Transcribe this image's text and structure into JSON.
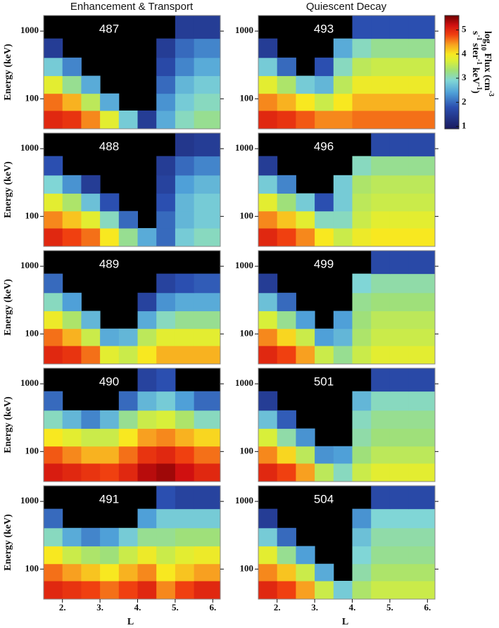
{
  "figure": {
    "column_titles": [
      "Enhancement & Transport",
      "Quiescent Decay"
    ],
    "colorbar": {
      "clim": [
        0.9,
        5.6
      ],
      "ticks": [
        1,
        2,
        3,
        4,
        5
      ],
      "colormap": [
        {
          "value": 0.9,
          "color": "#1a1a5e"
        },
        {
          "value": 1.8,
          "color": "#2b4fb0"
        },
        {
          "value": 2.4,
          "color": "#4fa0d8"
        },
        {
          "value": 2.9,
          "color": "#80d6d6"
        },
        {
          "value": 3.3,
          "color": "#9fe07a"
        },
        {
          "value": 3.7,
          "color": "#d8ef3a"
        },
        {
          "value": 4.0,
          "color": "#f8e820"
        },
        {
          "value": 4.4,
          "color": "#f8a020"
        },
        {
          "value": 4.8,
          "color": "#f04010"
        },
        {
          "value": 5.2,
          "color": "#d01010"
        },
        {
          "value": 5.6,
          "color": "#6e0000"
        }
      ],
      "label": [
        [
          {
            "text": "log"
          },
          {
            "text": "10",
            "sub": true
          },
          {
            "text": " Flux (cm"
          },
          {
            "text": "-3",
            "sup": true
          }
        ],
        [
          {
            "text": "s"
          },
          {
            "text": "-1",
            "sup": true
          },
          {
            "text": " ster"
          },
          {
            "text": "-1",
            "sup": true
          },
          {
            "text": " keV"
          },
          {
            "text": "-1",
            "sup": true
          },
          {
            "text": ")"
          }
        ]
      ]
    }
  },
  "chart_data": [
    {
      "type": "heatmap",
      "title": "487",
      "ylabel": "Energy (keV)",
      "ylog": true,
      "xlim": [
        1.5,
        6.2
      ],
      "ylim": [
        36,
        1700
      ],
      "yticks": [
        100,
        1000
      ],
      "x": [
        1.75,
        2.25,
        2.75,
        3.25,
        3.75,
        4.25,
        4.75,
        5.25,
        5.75
      ],
      "y": [
        50,
        90,
        160,
        300,
        550,
        1100
      ],
      "z": [
        [
          5.0,
          4.9,
          4.5,
          3.8,
          2.8,
          1.5,
          2.5,
          3.0,
          3.2
        ],
        [
          4.6,
          4.3,
          3.5,
          2.5,
          null,
          null,
          2.3,
          2.8,
          3.0
        ],
        [
          3.8,
          3.2,
          2.5,
          null,
          null,
          null,
          2.0,
          2.6,
          2.8
        ],
        [
          2.8,
          2.2,
          null,
          null,
          null,
          null,
          1.7,
          2.2,
          2.5
        ],
        [
          1.5,
          null,
          null,
          null,
          null,
          null,
          1.5,
          2.0,
          2.2
        ],
        [
          null,
          null,
          null,
          null,
          null,
          null,
          null,
          1.5,
          1.5
        ]
      ]
    },
    {
      "type": "heatmap",
      "title": "488",
      "ylabel": "Energy (keV)",
      "ylog": true,
      "xlim": [
        1.5,
        6.2
      ],
      "ylim": [
        36,
        1700
      ],
      "yticks": [
        100,
        1000
      ],
      "x": [
        1.75,
        2.25,
        2.75,
        3.25,
        3.75,
        4.25,
        4.75,
        5.25,
        5.75
      ],
      "y": [
        50,
        90,
        160,
        300,
        550,
        1100
      ],
      "z": [
        [
          5.0,
          4.8,
          4.6,
          4.0,
          3.2,
          2.5,
          2.0,
          2.8,
          3.0
        ],
        [
          4.5,
          4.2,
          3.8,
          3.0,
          2.0,
          null,
          2.0,
          2.6,
          2.8
        ],
        [
          3.8,
          3.4,
          2.7,
          1.8,
          null,
          null,
          1.8,
          2.6,
          2.8
        ],
        [
          2.9,
          2.3,
          1.5,
          null,
          null,
          null,
          1.6,
          2.4,
          2.6
        ],
        [
          1.8,
          null,
          null,
          null,
          null,
          null,
          1.5,
          2.0,
          2.2
        ],
        [
          null,
          null,
          null,
          null,
          null,
          null,
          null,
          1.4,
          1.5
        ]
      ]
    },
    {
      "type": "heatmap",
      "title": "489",
      "ylabel": "Energy (keV)",
      "ylog": true,
      "xlim": [
        1.5,
        6.2
      ],
      "ylim": [
        36,
        1700
      ],
      "yticks": [
        100,
        1000
      ],
      "x": [
        1.75,
        2.25,
        2.75,
        3.25,
        3.75,
        4.25,
        4.75,
        5.25,
        5.75
      ],
      "y": [
        50,
        90,
        160,
        300,
        550,
        1100
      ],
      "z": [
        [
          5.0,
          4.9,
          4.6,
          3.8,
          3.6,
          4.0,
          4.3,
          4.3,
          4.3
        ],
        [
          4.6,
          4.3,
          3.6,
          2.5,
          2.6,
          3.5,
          3.8,
          3.8,
          3.8
        ],
        [
          3.9,
          3.4,
          2.6,
          null,
          null,
          2.5,
          3.0,
          3.2,
          3.2
        ],
        [
          3.0,
          2.4,
          null,
          null,
          null,
          1.6,
          2.3,
          2.5,
          2.5
        ],
        [
          2.0,
          null,
          null,
          null,
          null,
          null,
          1.6,
          1.8,
          1.9
        ],
        [
          null,
          null,
          null,
          null,
          null,
          null,
          null,
          null,
          null
        ]
      ]
    },
    {
      "type": "heatmap",
      "title": "490",
      "ylabel": "Energy (keV)",
      "ylog": true,
      "xlim": [
        1.5,
        6.2
      ],
      "ylim": [
        36,
        1700
      ],
      "yticks": [
        100,
        1000
      ],
      "x": [
        1.75,
        2.25,
        2.75,
        3.25,
        3.75,
        4.25,
        4.75,
        5.25,
        5.75
      ],
      "y": [
        50,
        90,
        160,
        300,
        550,
        1100
      ],
      "z": [
        [
          5.1,
          5.0,
          4.9,
          4.8,
          5.0,
          5.3,
          5.4,
          5.2,
          5.0
        ],
        [
          4.7,
          4.5,
          4.3,
          4.3,
          4.6,
          4.9,
          5.0,
          4.8,
          4.6
        ],
        [
          4.0,
          3.8,
          3.6,
          3.6,
          4.0,
          4.4,
          4.5,
          4.3,
          4.1
        ],
        [
          3.0,
          2.6,
          2.2,
          2.6,
          3.2,
          3.6,
          3.7,
          3.4,
          3.0
        ],
        [
          2.0,
          null,
          null,
          null,
          2.0,
          2.6,
          2.8,
          2.4,
          2.0
        ],
        [
          null,
          null,
          null,
          null,
          null,
          1.6,
          1.8,
          null,
          null
        ]
      ]
    },
    {
      "type": "heatmap",
      "title": "491",
      "ylabel": "Energy (keV)",
      "xlabel": "L",
      "ylog": true,
      "xlim": [
        1.5,
        6.2
      ],
      "ylim": [
        36,
        1700
      ],
      "yticks": [
        100,
        1000
      ],
      "xticks": [
        {
          "value": 2,
          "label": "2."
        },
        {
          "value": 3,
          "label": "3."
        },
        {
          "value": 4,
          "label": "4."
        },
        {
          "value": 5,
          "label": "5."
        },
        {
          "value": 6,
          "label": "6."
        }
      ],
      "x": [
        1.75,
        2.25,
        2.75,
        3.25,
        3.75,
        4.25,
        4.75,
        5.25,
        5.75
      ],
      "y": [
        50,
        90,
        160,
        300,
        550,
        1100
      ],
      "z": [
        [
          5.0,
          4.9,
          4.8,
          4.6,
          4.8,
          5.0,
          4.5,
          4.8,
          5.0
        ],
        [
          4.6,
          4.4,
          4.2,
          4.0,
          4.3,
          4.5,
          4.0,
          4.2,
          4.4
        ],
        [
          4.0,
          3.6,
          3.4,
          3.3,
          3.6,
          3.9,
          3.6,
          3.8,
          3.9
        ],
        [
          3.0,
          2.5,
          2.2,
          2.4,
          2.8,
          3.2,
          3.2,
          3.3,
          3.3
        ],
        [
          2.0,
          null,
          null,
          null,
          null,
          2.4,
          2.8,
          2.8,
          2.8
        ],
        [
          null,
          null,
          null,
          null,
          null,
          null,
          1.8,
          1.6,
          1.6
        ]
      ]
    },
    {
      "type": "heatmap",
      "title": "493",
      "ylog": true,
      "xlim": [
        1.5,
        6.2
      ],
      "ylim": [
        36,
        1700
      ],
      "yticks": [
        100,
        1000
      ],
      "x": [
        1.75,
        2.25,
        2.75,
        3.25,
        3.75,
        4.25,
        4.75,
        5.25,
        5.75
      ],
      "y": [
        50,
        90,
        160,
        300,
        550,
        1100
      ],
      "z": [
        [
          5.0,
          4.9,
          4.7,
          4.5,
          4.5,
          4.6,
          4.6,
          4.6,
          4.6
        ],
        [
          4.5,
          4.3,
          4.0,
          3.6,
          4.0,
          4.3,
          4.3,
          4.3,
          4.3
        ],
        [
          3.8,
          3.4,
          2.8,
          2.6,
          3.5,
          3.9,
          3.9,
          3.9,
          3.9
        ],
        [
          2.8,
          2.0,
          null,
          1.8,
          3.0,
          3.5,
          3.6,
          3.6,
          3.6
        ],
        [
          1.5,
          null,
          null,
          null,
          2.5,
          3.0,
          3.2,
          3.2,
          3.2
        ],
        [
          null,
          null,
          null,
          null,
          null,
          1.8,
          1.8,
          1.8,
          1.8
        ]
      ]
    },
    {
      "type": "heatmap",
      "title": "496",
      "ylog": true,
      "xlim": [
        1.5,
        6.2
      ],
      "ylim": [
        36,
        1700
      ],
      "yticks": [
        100,
        1000
      ],
      "x": [
        1.75,
        2.25,
        2.75,
        3.25,
        3.75,
        4.25,
        4.75,
        5.25,
        5.75
      ],
      "y": [
        50,
        90,
        160,
        300,
        550,
        1100
      ],
      "z": [
        [
          5.0,
          4.8,
          4.5,
          4.0,
          3.6,
          3.9,
          4.0,
          4.0,
          4.0
        ],
        [
          4.5,
          4.2,
          3.8,
          3.0,
          3.0,
          3.6,
          3.8,
          3.8,
          3.8
        ],
        [
          3.8,
          3.3,
          2.8,
          1.8,
          2.8,
          3.5,
          3.6,
          3.6,
          3.6
        ],
        [
          2.8,
          2.2,
          null,
          null,
          2.8,
          3.4,
          3.5,
          3.5,
          3.5
        ],
        [
          1.5,
          null,
          null,
          null,
          null,
          3.0,
          3.2,
          3.2,
          3.2
        ],
        [
          null,
          null,
          null,
          null,
          null,
          null,
          1.7,
          1.7,
          1.7
        ]
      ]
    },
    {
      "type": "heatmap",
      "title": "499",
      "ylog": true,
      "xlim": [
        1.5,
        6.2
      ],
      "ylim": [
        36,
        1700
      ],
      "yticks": [
        100,
        1000
      ],
      "x": [
        1.75,
        2.25,
        2.75,
        3.25,
        3.75,
        4.25,
        4.75,
        5.25,
        5.75
      ],
      "y": [
        50,
        90,
        160,
        300,
        550,
        1100
      ],
      "z": [
        [
          5.0,
          4.8,
          4.4,
          3.6,
          3.2,
          3.6,
          3.8,
          3.8,
          3.8
        ],
        [
          4.5,
          4.1,
          3.6,
          2.4,
          2.6,
          3.4,
          3.6,
          3.6,
          3.6
        ],
        [
          3.7,
          3.2,
          2.4,
          null,
          2.4,
          3.3,
          3.5,
          3.5,
          3.5
        ],
        [
          2.7,
          2.0,
          null,
          null,
          null,
          3.2,
          3.3,
          3.3,
          3.3
        ],
        [
          1.5,
          null,
          null,
          null,
          null,
          2.9,
          3.1,
          3.1,
          3.1
        ],
        [
          null,
          null,
          null,
          null,
          null,
          null,
          1.7,
          1.7,
          1.7
        ]
      ]
    },
    {
      "type": "heatmap",
      "title": "501",
      "ylog": true,
      "xlim": [
        1.5,
        6.2
      ],
      "ylim": [
        36,
        1700
      ],
      "yticks": [
        100,
        1000
      ],
      "x": [
        1.75,
        2.25,
        2.75,
        3.25,
        3.75,
        4.25,
        4.75,
        5.25,
        5.75
      ],
      "y": [
        50,
        90,
        160,
        300,
        550,
        1100
      ],
      "z": [
        [
          5.0,
          4.8,
          4.4,
          3.5,
          3.0,
          3.6,
          3.8,
          3.8,
          3.8
        ],
        [
          4.5,
          4.1,
          3.5,
          2.3,
          2.4,
          3.3,
          3.5,
          3.5,
          3.5
        ],
        [
          3.7,
          3.1,
          2.3,
          null,
          null,
          3.1,
          3.3,
          3.3,
          3.3
        ],
        [
          2.7,
          1.9,
          null,
          null,
          null,
          3.0,
          3.2,
          3.2,
          3.2
        ],
        [
          1.5,
          null,
          null,
          null,
          null,
          2.6,
          3.0,
          3.0,
          3.0
        ],
        [
          null,
          null,
          null,
          null,
          null,
          null,
          1.7,
          1.7,
          1.7
        ]
      ]
    },
    {
      "type": "heatmap",
      "title": "504",
      "xlabel": "L",
      "ylog": true,
      "xlim": [
        1.5,
        6.2
      ],
      "ylim": [
        36,
        1700
      ],
      "yticks": [
        100,
        1000
      ],
      "xticks": [
        {
          "value": 2,
          "label": "2."
        },
        {
          "value": 3,
          "label": "3."
        },
        {
          "value": 4,
          "label": "4."
        },
        {
          "value": 5,
          "label": "5."
        },
        {
          "value": 6,
          "label": "6."
        }
      ],
      "x": [
        1.75,
        2.25,
        2.75,
        3.25,
        3.75,
        4.25,
        4.75,
        5.25,
        5.75
      ],
      "y": [
        50,
        90,
        160,
        300,
        550,
        1100
      ],
      "z": [
        [
          5.0,
          4.8,
          4.4,
          3.6,
          2.8,
          3.4,
          3.6,
          3.6,
          3.6
        ],
        [
          4.5,
          4.2,
          3.6,
          2.5,
          null,
          3.1,
          3.4,
          3.4,
          3.4
        ],
        [
          3.8,
          3.2,
          2.4,
          null,
          null,
          2.9,
          3.2,
          3.2,
          3.2
        ],
        [
          2.8,
          2.0,
          null,
          null,
          null,
          2.7,
          3.1,
          3.1,
          3.1
        ],
        [
          1.5,
          null,
          null,
          null,
          null,
          2.3,
          2.9,
          2.9,
          2.9
        ],
        [
          null,
          null,
          null,
          null,
          null,
          null,
          1.7,
          1.7,
          1.7
        ]
      ]
    }
  ]
}
